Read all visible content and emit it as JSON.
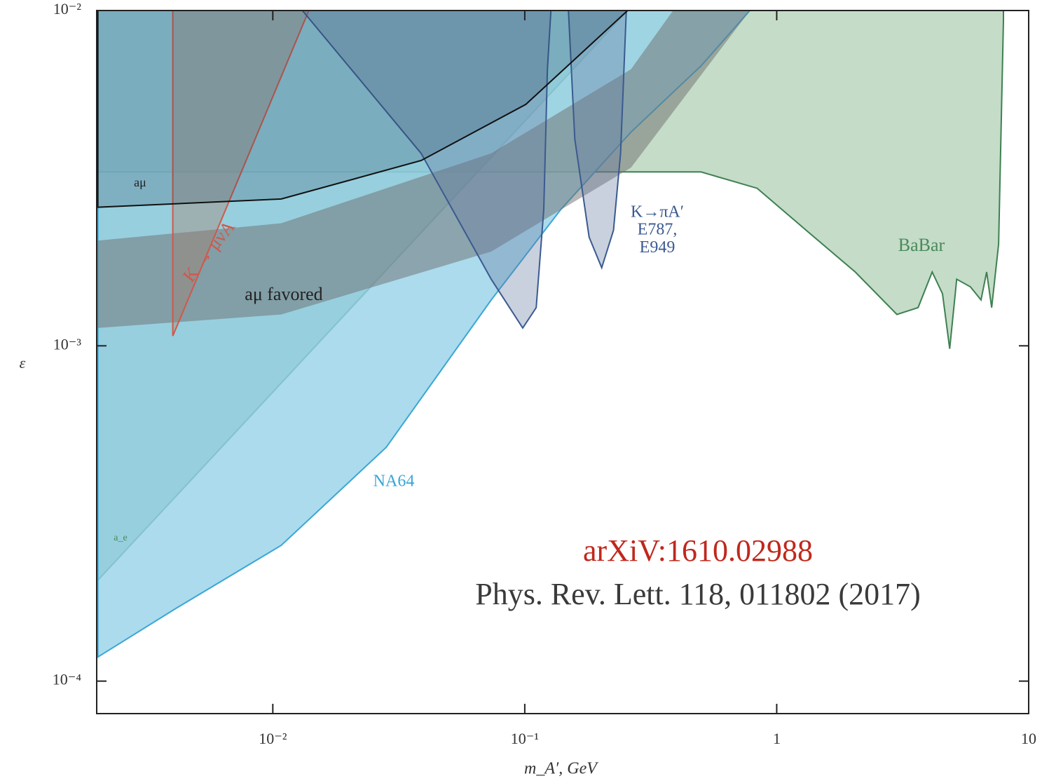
{
  "chart_data": {
    "type": "region",
    "xlabel": "m_A′, GeV",
    "ylabel": "ε",
    "xlog": true,
    "ylog": true,
    "xlim": [
      0.002,
      10
    ],
    "ylim": [
      8e-05,
      0.01
    ],
    "xticks": [
      {
        "value": 0.01,
        "label": "10⁻²"
      },
      {
        "value": 0.1,
        "label": "10⁻¹"
      },
      1,
      10
    ],
    "yticks": [
      {
        "value": 0.0001,
        "label": "10⁻⁴"
      },
      {
        "value": 0.001,
        "label": "10⁻³"
      },
      {
        "value": 0.01,
        "label": "10⁻²"
      }
    ],
    "regions": [
      {
        "label": [
          "BaBar"
        ],
        "color": "#c4dcc8",
        "stroke": "#3e8050",
        "x": [
          0.00202,
          0.501,
          0.836,
          1.31,
          2.05,
          3.0,
          3.64,
          4.14,
          4.55,
          4.86,
          5.18,
          5.87,
          6.47,
          6.81,
          7.13,
          7.6,
          7.94,
          7.94,
          0.00202
        ],
        "values": [
          0.0033,
          0.0033,
          0.00295,
          0.00221,
          0.00166,
          0.00124,
          0.0013,
          0.00166,
          0.00143,
          0.00098,
          0.00158,
          0.0015,
          0.00137,
          0.00166,
          0.0013,
          0.00201,
          0.00935,
          0.01,
          0.01
        ]
      },
      {
        "label": [
          "a_e"
        ],
        "color": "rgba(70,140,120,0.55)",
        "stroke": "#3e7f62",
        "x": [
          0.00202,
          0.256,
          0.00202
        ],
        "values": [
          0.0002,
          0.01,
          0.01
        ]
      },
      {
        "label": [
          "NA64"
        ],
        "color": "rgba(150,210,232,0.8)",
        "stroke": "#3aa6d6",
        "x": [
          0.00202,
          0.00414,
          0.0108,
          0.0282,
          0.0736,
          0.139,
          0.264,
          0.501,
          0.783,
          0.00202
        ],
        "values": [
          0.000118,
          0.000165,
          0.000254,
          0.000498,
          0.00137,
          0.00255,
          0.00434,
          0.00684,
          0.01,
          0.01
        ]
      },
      {
        "label": [
          "aμ favored"
        ],
        "color": "rgba(110,110,110,0.5)",
        "stroke": "none",
        "x": [
          0.00202,
          0.0108,
          0.0736,
          0.264,
          0.783,
          0.388,
          0.264,
          0.0736,
          0.0108,
          0.00202
        ],
        "values": [
          0.00113,
          0.00124,
          0.00191,
          0.0034,
          0.01,
          0.01,
          0.00668,
          0.00375,
          0.00232,
          0.00206
        ]
      },
      {
        "label": [
          "K → μνA"
        ],
        "color": "rgba(170,120,100,0.35)",
        "stroke": "#d0584a",
        "x": [
          0.00401,
          0.0139,
          0.00401
        ],
        "values": [
          0.00107,
          0.01,
          0.01
        ]
      },
      {
        "label": [
          "K→πA′",
          "E787,",
          "E949"
        ],
        "color": "rgba(100,120,160,0.35)",
        "stroke": "#3a5a90",
        "x": [
          0.0131,
          0.0388,
          0.0736,
          0.0982,
          0.111,
          0.119,
          0.123,
          0.127,
          0.149,
          0.158,
          0.18,
          0.202,
          0.225,
          0.24,
          0.253
        ],
        "values": [
          0.01,
          0.00375,
          0.00158,
          0.00113,
          0.0013,
          0.00255,
          0.00668,
          0.01,
          0.01,
          0.00413,
          0.00211,
          0.00171,
          0.00221,
          0.00375,
          0.01
        ]
      },
      {
        "label": [
          "aμ"
        ],
        "color": "rgba(40,70,90,0.22)",
        "stroke": "#111111",
        "x": [
          0.00202,
          0.0108,
          0.0388,
          0.101,
          0.256,
          0.00202
        ],
        "values": [
          0.00259,
          0.00274,
          0.00357,
          0.00525,
          0.01,
          0.01
        ]
      }
    ],
    "annotations": [
      "arXiV:1610.02988",
      "Phys. Rev. Lett. 118, 011802 (2017)"
    ]
  }
}
